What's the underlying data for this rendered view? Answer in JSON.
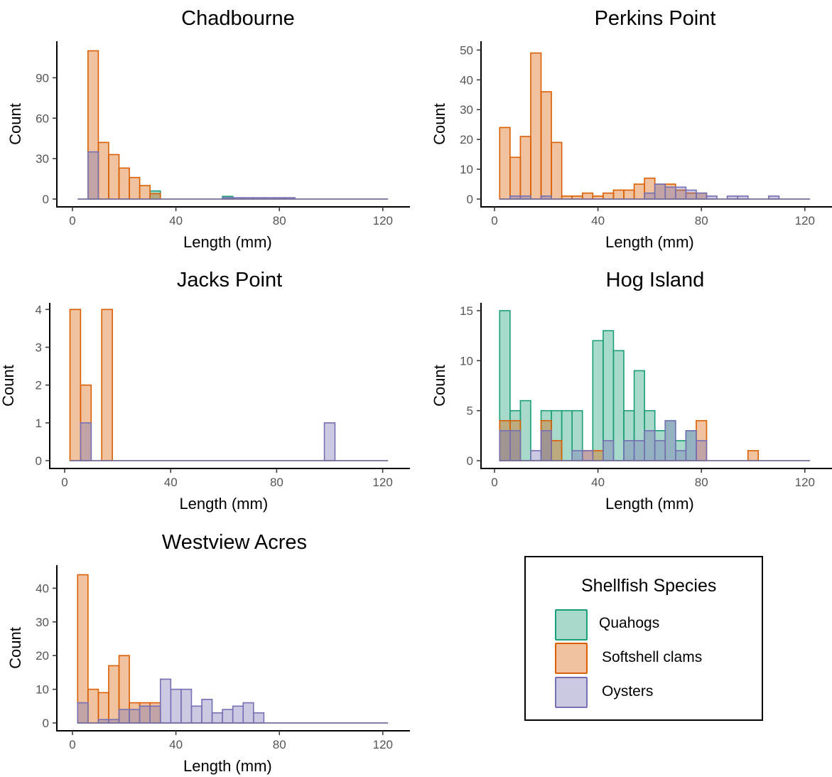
{
  "colors": {
    "Quahogs": {
      "fill": "#1b9e77",
      "stroke": "#1b9e77"
    },
    "Softshell clams": {
      "fill": "#d95f02",
      "stroke": "#d95f02"
    },
    "Oysters": {
      "fill": "#7570b3",
      "stroke": "#7570b3"
    }
  },
  "legend": {
    "title": "Shellfish Species",
    "items": [
      "Quahogs",
      "Softshell clams",
      "Oysters"
    ]
  },
  "chart_data": [
    {
      "type": "bar",
      "title": "Chadbourne",
      "xlabel": "Length (mm)",
      "ylabel": "Count",
      "xlim": [
        0,
        125
      ],
      "ylim": [
        0,
        115
      ],
      "xticks": [
        0,
        40,
        80,
        120
      ],
      "yticks": [
        0,
        30,
        60,
        90
      ],
      "bin_start": 2,
      "bin_width": 4,
      "series": [
        {
          "name": "Quahogs",
          "values": [
            0,
            0,
            0,
            0,
            0,
            0,
            0,
            6,
            0,
            0,
            0,
            0,
            0,
            0,
            2,
            0,
            0,
            0,
            0,
            0,
            0,
            0,
            0,
            0,
            0,
            0,
            0,
            0,
            0,
            0
          ]
        },
        {
          "name": "Softshell clams",
          "values": [
            0,
            110,
            42,
            33,
            23,
            16,
            10,
            4,
            0,
            0,
            0,
            0,
            0,
            0,
            0,
            0,
            0,
            0,
            0,
            0,
            0,
            0,
            0,
            0,
            0,
            0,
            0,
            0,
            0,
            0
          ]
        },
        {
          "name": "Oysters",
          "values": [
            0,
            35,
            0,
            0,
            0,
            0,
            0,
            0,
            0,
            0,
            0,
            0,
            0,
            0,
            1,
            1,
            1,
            1,
            1,
            1,
            1,
            0,
            0,
            0,
            0,
            0,
            0,
            0,
            0,
            0
          ]
        }
      ]
    },
    {
      "type": "bar",
      "title": "Perkins Point",
      "xlabel": "Length (mm)",
      "ylabel": "Count",
      "xlim": [
        0,
        125
      ],
      "ylim": [
        0,
        52
      ],
      "xticks": [
        0,
        40,
        80,
        120
      ],
      "yticks": [
        0,
        10,
        20,
        30,
        40,
        50
      ],
      "bin_start": 2,
      "bin_width": 4,
      "series": [
        {
          "name": "Quahogs",
          "values": [
            0,
            0,
            0,
            0,
            0,
            0,
            0,
            0,
            0,
            0,
            0,
            0,
            0,
            0,
            0,
            0,
            0,
            0,
            0,
            0,
            0,
            0,
            0,
            0,
            0,
            0,
            0,
            0,
            0,
            0
          ]
        },
        {
          "name": "Softshell clams",
          "values": [
            24,
            14,
            21,
            49,
            36,
            19,
            1,
            1,
            2,
            1,
            2,
            3,
            3,
            5,
            7,
            5,
            5,
            3,
            2,
            2,
            0,
            0,
            0,
            0,
            0,
            0,
            0,
            0,
            0,
            0
          ]
        },
        {
          "name": "Oysters",
          "values": [
            0,
            1,
            1,
            0,
            1,
            0,
            0,
            0,
            0,
            0,
            0,
            0,
            0,
            0,
            2,
            5,
            4,
            4,
            3,
            2,
            1,
            0,
            1,
            1,
            0,
            0,
            1,
            0,
            0,
            0
          ]
        }
      ]
    },
    {
      "type": "bar",
      "title": "Jacks Point",
      "xlabel": "Length (mm)",
      "ylabel": "Count",
      "xlim": [
        0,
        125
      ],
      "ylim": [
        0,
        4.1
      ],
      "xticks": [
        0,
        40,
        80,
        120
      ],
      "yticks": [
        0,
        1,
        2,
        3,
        4
      ],
      "bin_start": 2,
      "bin_width": 4,
      "series": [
        {
          "name": "Quahogs",
          "values": [
            0,
            0,
            0,
            0,
            0,
            0,
            0,
            0,
            0,
            0,
            0,
            0,
            0,
            0,
            0,
            0,
            0,
            0,
            0,
            0,
            0,
            0,
            0,
            0,
            0,
            0,
            0,
            0,
            0,
            0
          ]
        },
        {
          "name": "Softshell clams",
          "values": [
            4,
            2,
            0,
            4,
            0,
            0,
            0,
            0,
            0,
            0,
            0,
            0,
            0,
            0,
            0,
            0,
            0,
            0,
            0,
            0,
            0,
            0,
            0,
            0,
            0,
            0,
            0,
            0,
            0,
            0
          ]
        },
        {
          "name": "Oysters",
          "values": [
            0,
            1,
            0,
            0,
            0,
            0,
            0,
            0,
            0,
            0,
            0,
            0,
            0,
            0,
            0,
            0,
            0,
            0,
            0,
            0,
            0,
            0,
            0,
            0,
            1,
            0,
            0,
            0,
            0,
            0
          ]
        }
      ]
    },
    {
      "type": "bar",
      "title": "Hog Island",
      "xlabel": "Length (mm)",
      "ylabel": "Count",
      "xlim": [
        0,
        125
      ],
      "ylim": [
        0,
        15.5
      ],
      "xticks": [
        0,
        40,
        80,
        120
      ],
      "yticks": [
        0,
        5,
        10,
        15
      ],
      "bin_start": 2,
      "bin_width": 4,
      "series": [
        {
          "name": "Quahogs",
          "values": [
            15,
            5,
            6,
            0,
            5,
            5,
            5,
            5,
            0,
            12,
            13,
            11,
            5,
            9,
            5,
            3,
            4,
            2,
            3,
            0,
            0,
            0,
            0,
            0,
            0,
            0,
            0,
            0,
            0,
            0
          ]
        },
        {
          "name": "Softshell clams",
          "values": [
            4,
            4,
            0,
            0,
            4,
            2,
            0,
            0,
            1,
            1,
            0,
            0,
            0,
            0,
            0,
            0,
            0,
            0,
            0,
            4,
            0,
            0,
            0,
            0,
            1,
            0,
            0,
            0,
            0,
            0
          ]
        },
        {
          "name": "Oysters",
          "values": [
            3,
            3,
            0,
            1,
            3,
            0,
            0,
            1,
            1,
            0,
            2,
            0,
            2,
            2,
            3,
            2,
            4,
            1,
            3,
            2,
            0,
            0,
            0,
            0,
            0,
            0,
            0,
            0,
            0,
            0
          ]
        }
      ]
    },
    {
      "type": "bar",
      "title": "Westview Acres",
      "xlabel": "Length (mm)",
      "ylabel": "Count",
      "xlim": [
        0,
        125
      ],
      "ylim": [
        0,
        46
      ],
      "xticks": [
        0,
        40,
        80,
        120
      ],
      "yticks": [
        0,
        10,
        20,
        30,
        40
      ],
      "bin_start": 2,
      "bin_width": 4,
      "series": [
        {
          "name": "Quahogs",
          "values": [
            0,
            0,
            0,
            0,
            0,
            0,
            0,
            0,
            0,
            0,
            0,
            0,
            0,
            0,
            0,
            0,
            0,
            0,
            0,
            0,
            0,
            0,
            0,
            0,
            0,
            0,
            0,
            0,
            0,
            0
          ]
        },
        {
          "name": "Softshell clams",
          "values": [
            44,
            10,
            9,
            17,
            20,
            6,
            6,
            6,
            0,
            0,
            0,
            0,
            0,
            0,
            0,
            0,
            0,
            0,
            0,
            0,
            0,
            0,
            0,
            0,
            0,
            0,
            0,
            0,
            0,
            0
          ]
        },
        {
          "name": "Oysters",
          "values": [
            6,
            0,
            1,
            1,
            4,
            4,
            5,
            5,
            13,
            10,
            10,
            5,
            7,
            3,
            4,
            5,
            6,
            3,
            0,
            0,
            0,
            0,
            0,
            0,
            0,
            0,
            0,
            0,
            0,
            0
          ]
        }
      ]
    }
  ]
}
